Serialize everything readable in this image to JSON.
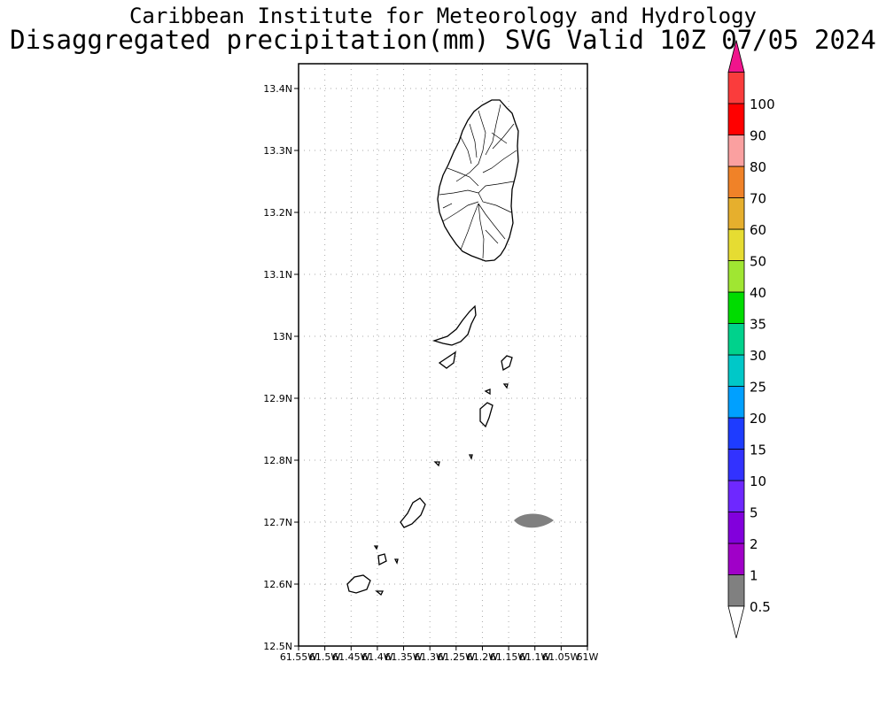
{
  "header": {
    "title": "Caribbean Institute for Meteorology and Hydrology",
    "subtitle": "Disaggregated precipitation(mm) SVG Valid 10Z 07/05 2024"
  },
  "map": {
    "lon_range": [
      -61.55,
      -61.0
    ],
    "lat_range": [
      12.5,
      13.44
    ],
    "lat_ticks": [
      {
        "value": 13.4,
        "label": "13.4N"
      },
      {
        "value": 13.3,
        "label": "13.3N"
      },
      {
        "value": 13.2,
        "label": "13.2N"
      },
      {
        "value": 13.1,
        "label": "13.1N"
      },
      {
        "value": 13.0,
        "label": "13N"
      },
      {
        "value": 12.9,
        "label": "12.9N"
      },
      {
        "value": 12.8,
        "label": "12.8N"
      },
      {
        "value": 12.7,
        "label": "12.7N"
      },
      {
        "value": 12.6,
        "label": "12.6N"
      },
      {
        "value": 12.5,
        "label": "12.5N"
      }
    ],
    "lon_ticks": [
      {
        "value": -61.55,
        "label": "61.55W"
      },
      {
        "value": -61.5,
        "label": "61.5W"
      },
      {
        "value": -61.45,
        "label": "61.45W"
      },
      {
        "value": -61.4,
        "label": "61.4W"
      },
      {
        "value": -61.35,
        "label": "61.35W"
      },
      {
        "value": -61.3,
        "label": "61.3W"
      },
      {
        "value": -61.25,
        "label": "61.25W"
      },
      {
        "value": -61.2,
        "label": "61.2W"
      },
      {
        "value": -61.15,
        "label": "61.15W"
      },
      {
        "value": -61.1,
        "label": "61.1W"
      },
      {
        "value": -61.05,
        "label": "61.05W"
      },
      {
        "value": -61.0,
        "label": "61W"
      }
    ],
    "grid": true,
    "precip_feature": {
      "lon": -61.1,
      "lat": 12.7,
      "category": "0.5-1",
      "color": "#808080"
    }
  },
  "colorbar": {
    "levels": [
      {
        "label": "0.5",
        "color": "#808080"
      },
      {
        "label": "1",
        "color": "#a000c8"
      },
      {
        "label": "2",
        "color": "#8200dc"
      },
      {
        "label": "5",
        "color": "#6e28ff"
      },
      {
        "label": "10",
        "color": "#3232ff"
      },
      {
        "label": "15",
        "color": "#1e3cff"
      },
      {
        "label": "20",
        "color": "#00a0ff"
      },
      {
        "label": "25",
        "color": "#00c8c8"
      },
      {
        "label": "30",
        "color": "#00d28c"
      },
      {
        "label": "35",
        "color": "#00dc00"
      },
      {
        "label": "40",
        "color": "#a0e632"
      },
      {
        "label": "50",
        "color": "#e6dc32"
      },
      {
        "label": "60",
        "color": "#e6af2d"
      },
      {
        "label": "70",
        "color": "#f08228"
      },
      {
        "label": "80",
        "color": "#faa0a0"
      },
      {
        "label": "90",
        "color": "#ff0000"
      },
      {
        "label": "100",
        "color": "#fa3c3c"
      }
    ],
    "top_arrow_color": "#f0148c",
    "bottom_arrow_color": "#ffffff"
  }
}
